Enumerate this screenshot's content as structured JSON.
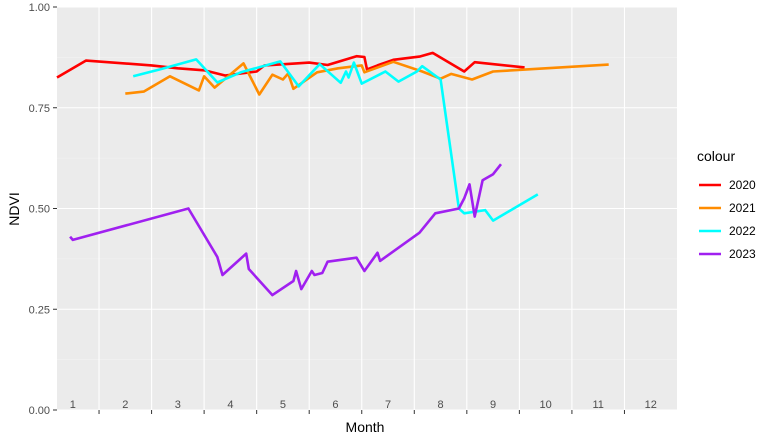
{
  "chart_data": {
    "type": "line",
    "xlabel": "Month",
    "ylabel": "NDVI",
    "ylim": [
      0,
      1
    ],
    "xlim": [
      0.7,
      12.5
    ],
    "yticks": [
      0,
      0.25,
      0.5,
      0.75,
      1
    ],
    "ytick_labels": [
      "0.00",
      "0.25",
      "0.50",
      "0.75",
      "1.00"
    ],
    "month_labels": [
      "1",
      "2",
      "3",
      "4",
      "5",
      "6",
      "7",
      "8",
      "9",
      "10",
      "11",
      "12"
    ],
    "grid": true,
    "legend": {
      "title": "colour",
      "position": "right"
    },
    "series": [
      {
        "name": "2020",
        "color": "#ff0000",
        "points": [
          [
            0.7,
            0.825
          ],
          [
            1.25,
            0.867
          ],
          [
            2.5,
            0.855
          ],
          [
            3.0,
            0.848
          ],
          [
            3.5,
            0.843
          ],
          [
            3.9,
            0.83
          ],
          [
            4.5,
            0.84
          ],
          [
            4.65,
            0.855
          ],
          [
            5.25,
            0.86
          ],
          [
            5.5,
            0.862
          ],
          [
            5.85,
            0.856
          ],
          [
            6.4,
            0.878
          ],
          [
            6.55,
            0.876
          ],
          [
            6.6,
            0.845
          ],
          [
            6.8,
            0.855
          ],
          [
            7.1,
            0.869
          ],
          [
            7.6,
            0.877
          ],
          [
            7.85,
            0.886
          ],
          [
            8.45,
            0.84
          ],
          [
            8.65,
            0.863
          ],
          [
            9.6,
            0.85
          ]
        ]
      },
      {
        "name": "2021",
        "color": "#ff8c00",
        "points": [
          [
            2.0,
            0.785
          ],
          [
            2.35,
            0.79
          ],
          [
            2.85,
            0.828
          ],
          [
            3.4,
            0.793
          ],
          [
            3.5,
            0.828
          ],
          [
            3.7,
            0.8
          ],
          [
            4.25,
            0.86
          ],
          [
            4.55,
            0.783
          ],
          [
            4.8,
            0.832
          ],
          [
            5.0,
            0.82
          ],
          [
            5.1,
            0.835
          ],
          [
            5.2,
            0.797
          ],
          [
            5.65,
            0.838
          ],
          [
            6.05,
            0.848
          ],
          [
            6.5,
            0.855
          ],
          [
            6.55,
            0.838
          ],
          [
            7.1,
            0.864
          ],
          [
            7.65,
            0.84
          ],
          [
            8.0,
            0.822
          ],
          [
            8.2,
            0.834
          ],
          [
            8.6,
            0.82
          ],
          [
            9.0,
            0.84
          ],
          [
            10.0,
            0.848
          ],
          [
            11.2,
            0.857
          ]
        ]
      },
      {
        "name": "2022",
        "color": "#00ffff",
        "points": [
          [
            2.15,
            0.828
          ],
          [
            2.65,
            0.845
          ],
          [
            3.35,
            0.87
          ],
          [
            3.75,
            0.813
          ],
          [
            4.2,
            0.838
          ],
          [
            4.95,
            0.865
          ],
          [
            5.3,
            0.803
          ],
          [
            5.7,
            0.858
          ],
          [
            6.1,
            0.812
          ],
          [
            6.2,
            0.84
          ],
          [
            6.25,
            0.825
          ],
          [
            6.35,
            0.862
          ],
          [
            6.5,
            0.81
          ],
          [
            6.95,
            0.84
          ],
          [
            7.2,
            0.815
          ],
          [
            7.55,
            0.84
          ],
          [
            7.65,
            0.853
          ],
          [
            8.0,
            0.82
          ],
          [
            8.35,
            0.5
          ],
          [
            8.45,
            0.488
          ],
          [
            8.85,
            0.496
          ],
          [
            9.0,
            0.47
          ],
          [
            9.85,
            0.535
          ]
        ]
      },
      {
        "name": "2023",
        "color": "#a020f0",
        "points": [
          [
            0.95,
            0.43
          ],
          [
            1.0,
            0.422
          ],
          [
            3.2,
            0.5
          ],
          [
            3.75,
            0.38
          ],
          [
            3.85,
            0.335
          ],
          [
            4.3,
            0.388
          ],
          [
            4.35,
            0.35
          ],
          [
            4.8,
            0.285
          ],
          [
            5.2,
            0.32
          ],
          [
            5.25,
            0.345
          ],
          [
            5.35,
            0.3
          ],
          [
            5.55,
            0.345
          ],
          [
            5.6,
            0.335
          ],
          [
            5.75,
            0.34
          ],
          [
            5.85,
            0.368
          ],
          [
            6.4,
            0.378
          ],
          [
            6.55,
            0.345
          ],
          [
            6.8,
            0.39
          ],
          [
            6.85,
            0.37
          ],
          [
            7.6,
            0.44
          ],
          [
            7.9,
            0.488
          ],
          [
            8.35,
            0.5
          ],
          [
            8.45,
            0.525
          ],
          [
            8.55,
            0.56
          ],
          [
            8.65,
            0.48
          ],
          [
            8.8,
            0.57
          ],
          [
            9.0,
            0.585
          ],
          [
            9.15,
            0.61
          ]
        ]
      }
    ]
  }
}
